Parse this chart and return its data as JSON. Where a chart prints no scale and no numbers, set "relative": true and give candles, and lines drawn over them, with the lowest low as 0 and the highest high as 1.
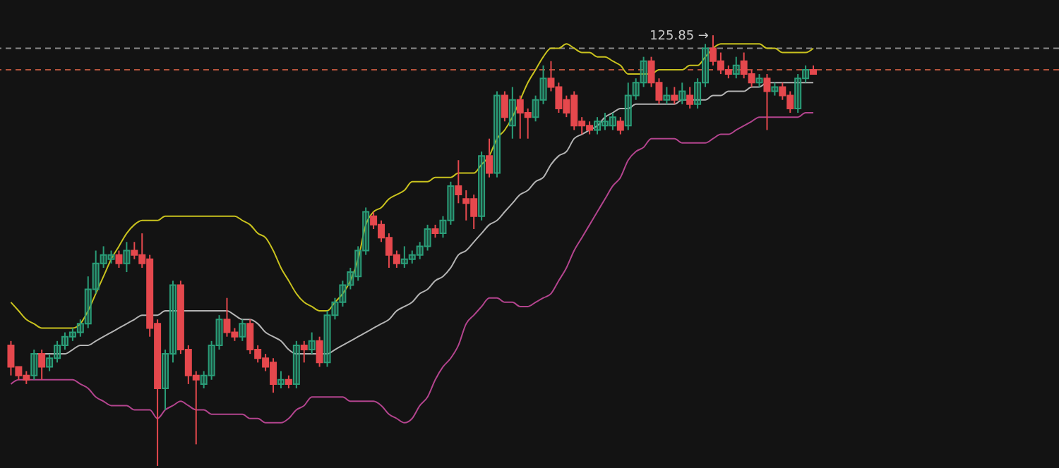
{
  "chart_data": {
    "type": "candlestick",
    "relative": true,
    "categories": [
      null,
      null,
      null,
      null,
      null,
      null,
      null,
      null,
      null,
      null,
      null,
      null,
      null,
      null,
      null,
      null,
      null,
      null,
      null,
      null,
      null,
      null,
      null,
      null,
      null,
      null,
      null,
      null,
      null,
      null,
      null,
      null,
      null,
      null,
      null,
      null,
      null,
      null,
      null,
      null,
      null,
      null,
      null,
      null,
      null,
      null,
      null,
      null,
      null,
      null,
      null,
      null,
      null,
      null,
      null,
      null,
      null,
      null,
      null,
      null,
      null,
      null,
      null,
      null,
      null,
      null,
      null,
      null,
      null,
      null,
      null,
      null,
      null,
      null,
      null,
      null,
      null,
      null,
      null,
      null,
      null,
      null,
      null,
      null,
      null,
      null,
      null,
      null,
      null,
      null,
      null,
      null,
      null,
      null,
      null,
      null,
      null,
      null,
      null,
      null,
      null,
      null,
      null,
      null,
      null
    ],
    "ohlc": [
      [
        0.28,
        0.29,
        0.21,
        0.23
      ],
      [
        0.23,
        0.23,
        0.2,
        0.21
      ],
      [
        0.21,
        0.22,
        0.19,
        0.2
      ],
      [
        0.21,
        0.27,
        0.2,
        0.26
      ],
      [
        0.26,
        0.27,
        0.2,
        0.23
      ],
      [
        0.23,
        0.26,
        0.22,
        0.25
      ],
      [
        0.25,
        0.29,
        0.24,
        0.28
      ],
      [
        0.28,
        0.31,
        0.27,
        0.3
      ],
      [
        0.3,
        0.32,
        0.29,
        0.31
      ],
      [
        0.31,
        0.34,
        0.3,
        0.33
      ],
      [
        0.33,
        0.44,
        0.32,
        0.41
      ],
      [
        0.41,
        0.5,
        0.4,
        0.47
      ],
      [
        0.47,
        0.51,
        0.46,
        0.49
      ],
      [
        0.48,
        0.5,
        0.47,
        0.49
      ],
      [
        0.49,
        0.5,
        0.46,
        0.47
      ],
      [
        0.47,
        0.52,
        0.45,
        0.5
      ],
      [
        0.5,
        0.52,
        0.48,
        0.49
      ],
      [
        0.49,
        0.54,
        0.46,
        0.47
      ],
      [
        0.48,
        0.49,
        0.3,
        0.32
      ],
      [
        0.33,
        0.34,
        0,
        0.18
      ],
      [
        0.18,
        0.27,
        0.13,
        0.26
      ],
      [
        0.26,
        0.43,
        0.24,
        0.42
      ],
      [
        0.42,
        0.43,
        0.26,
        0.27
      ],
      [
        0.27,
        0.28,
        0.19,
        0.21
      ],
      [
        0.21,
        0.22,
        0.05,
        0.2
      ],
      [
        0.19,
        0.22,
        0.18,
        0.21
      ],
      [
        0.21,
        0.29,
        0.2,
        0.28
      ],
      [
        0.28,
        0.35,
        0.27,
        0.34
      ],
      [
        0.34,
        0.39,
        0.3,
        0.31
      ],
      [
        0.31,
        0.32,
        0.29,
        0.3
      ],
      [
        0.3,
        0.34,
        0.29,
        0.33
      ],
      [
        0.33,
        0.34,
        0.26,
        0.27
      ],
      [
        0.27,
        0.28,
        0.24,
        0.25
      ],
      [
        0.25,
        0.26,
        0.22,
        0.23
      ],
      [
        0.24,
        0.25,
        0.17,
        0.19
      ],
      [
        0.19,
        0.22,
        0.18,
        0.2
      ],
      [
        0.2,
        0.21,
        0.18,
        0.19
      ],
      [
        0.19,
        0.29,
        0.18,
        0.28
      ],
      [
        0.28,
        0.29,
        0.24,
        0.27
      ],
      [
        0.27,
        0.31,
        0.26,
        0.29
      ],
      [
        0.29,
        0.3,
        0.23,
        0.24
      ],
      [
        0.24,
        0.36,
        0.23,
        0.35
      ],
      [
        0.35,
        0.39,
        0.34,
        0.38
      ],
      [
        0.38,
        0.43,
        0.37,
        0.42
      ],
      [
        0.42,
        0.46,
        0.41,
        0.45
      ],
      [
        0.44,
        0.51,
        0.43,
        0.5
      ],
      [
        0.5,
        0.6,
        0.49,
        0.59
      ],
      [
        0.58,
        0.59,
        0.55,
        0.56
      ],
      [
        0.56,
        0.57,
        0.52,
        0.53
      ],
      [
        0.53,
        0.54,
        0.46,
        0.49
      ],
      [
        0.49,
        0.5,
        0.46,
        0.47
      ],
      [
        0.47,
        0.51,
        0.46,
        0.48
      ],
      [
        0.48,
        0.5,
        0.47,
        0.49
      ],
      [
        0.49,
        0.52,
        0.48,
        0.51
      ],
      [
        0.51,
        0.56,
        0.5,
        0.55
      ],
      [
        0.55,
        0.56,
        0.53,
        0.54
      ],
      [
        0.54,
        0.58,
        0.53,
        0.57
      ],
      [
        0.57,
        0.66,
        0.56,
        0.65
      ],
      [
        0.65,
        0.71,
        0.61,
        0.63
      ],
      [
        0.62,
        0.64,
        0.57,
        0.61
      ],
      [
        0.62,
        0.63,
        0.55,
        0.58
      ],
      [
        0.58,
        0.73,
        0.57,
        0.72
      ],
      [
        0.72,
        0.76,
        0.67,
        0.68
      ],
      [
        0.68,
        0.87,
        0.67,
        0.86
      ],
      [
        0.86,
        0.87,
        0.8,
        0.81
      ],
      [
        0.79,
        0.88,
        0.76,
        0.85
      ],
      [
        0.85,
        0.86,
        0.76,
        0.82
      ],
      [
        0.82,
        0.83,
        0.76,
        0.81
      ],
      [
        0.81,
        0.86,
        0.8,
        0.85
      ],
      [
        0.85,
        0.93,
        0.84,
        0.9
      ],
      [
        0.9,
        0.94,
        0.87,
        0.88
      ],
      [
        0.88,
        0.89,
        0.82,
        0.83
      ],
      [
        0.85,
        0.86,
        0.81,
        0.82
      ],
      [
        0.86,
        0.87,
        0.78,
        0.79
      ],
      [
        0.8,
        0.81,
        0.77,
        0.79
      ],
      [
        0.79,
        0.8,
        0.77,
        0.78
      ],
      [
        0.78,
        0.81,
        0.77,
        0.8
      ],
      [
        0.79,
        0.82,
        0.78,
        0.8
      ],
      [
        0.79,
        0.82,
        0.78,
        0.81
      ],
      [
        0.8,
        0.81,
        0.77,
        0.78
      ],
      [
        0.79,
        0.89,
        0.78,
        0.86
      ],
      [
        0.86,
        0.9,
        0.85,
        0.89
      ],
      [
        0.89,
        0.95,
        0.88,
        0.94
      ],
      [
        0.94,
        0.95,
        0.88,
        0.89
      ],
      [
        0.89,
        0.9,
        0.84,
        0.85
      ],
      [
        0.85,
        0.88,
        0.84,
        0.86
      ],
      [
        0.86,
        0.88,
        0.84,
        0.85
      ],
      [
        0.85,
        0.89,
        0.84,
        0.87
      ],
      [
        0.86,
        0.88,
        0.83,
        0.84
      ],
      [
        0.84,
        0.9,
        0.83,
        0.89
      ],
      [
        0.89,
        0.98,
        0.88,
        0.97
      ],
      [
        0.97,
        1,
        0.93,
        0.94
      ],
      [
        0.94,
        0.96,
        0.91,
        0.92
      ],
      [
        0.92,
        0.93,
        0.9,
        0.91
      ],
      [
        0.91,
        0.95,
        0.9,
        0.93
      ],
      [
        0.94,
        0.96,
        0.9,
        0.91
      ],
      [
        0.91,
        0.92,
        0.88,
        0.89
      ],
      [
        0.89,
        0.91,
        0.88,
        0.9
      ],
      [
        0.9,
        0.91,
        0.78,
        0.87
      ],
      [
        0.87,
        0.89,
        0.86,
        0.88
      ],
      [
        0.88,
        0.89,
        0.85,
        0.86
      ],
      [
        0.86,
        0.87,
        0.82,
        0.83
      ],
      [
        0.83,
        0.91,
        0.82,
        0.9
      ],
      [
        0.9,
        0.93,
        0.89,
        0.92
      ],
      [
        0.92,
        0.93,
        0.91,
        0.91
      ]
    ],
    "series": [
      {
        "type": "line",
        "color": "#c9c21e",
        "values": [
          0.38,
          0.36,
          0.34,
          0.33,
          0.32,
          0.32,
          0.32,
          0.32,
          0.32,
          0.33,
          0.36,
          0.4,
          0.44,
          0.48,
          0.51,
          0.54,
          0.56,
          0.57,
          0.57,
          0.57,
          0.58,
          0.58,
          0.58,
          0.58,
          0.58,
          0.58,
          0.58,
          0.58,
          0.58,
          0.58,
          0.57,
          0.56,
          0.54,
          0.53,
          0.5,
          0.46,
          0.43,
          0.4,
          0.38,
          0.37,
          0.36,
          0.36,
          0.38,
          0.4,
          0.43,
          0.48,
          0.56,
          0.59,
          0.6,
          0.62,
          0.63,
          0.64,
          0.66,
          0.66,
          0.66,
          0.67,
          0.67,
          0.67,
          0.68,
          0.68,
          0.68,
          0.7,
          0.72,
          0.76,
          0.78,
          0.81,
          0.85,
          0.89,
          0.92,
          0.95,
          0.97,
          0.97,
          0.98,
          0.97,
          0.96,
          0.96,
          0.95,
          0.95,
          0.94,
          0.93,
          0.91,
          0.91,
          0.91,
          0.91,
          0.92,
          0.92,
          0.92,
          0.92,
          0.93,
          0.93,
          0.95,
          0.97,
          0.98,
          0.98,
          0.98,
          0.98,
          0.98,
          0.98,
          0.97,
          0.97,
          0.96,
          0.96,
          0.96,
          0.96,
          0.97
        ]
      },
      {
        "type": "line",
        "color": "#b4b4b4",
        "values": [
          null,
          null,
          null,
          0.26,
          0.26,
          0.26,
          0.26,
          0.26,
          0.27,
          0.28,
          0.28,
          0.29,
          0.3,
          0.31,
          0.32,
          0.33,
          0.34,
          0.35,
          0.35,
          0.35,
          0.36,
          0.36,
          0.36,
          0.36,
          0.36,
          0.36,
          0.36,
          0.36,
          0.36,
          0.35,
          0.34,
          0.34,
          0.33,
          0.31,
          0.3,
          0.29,
          0.27,
          0.26,
          0.26,
          0.26,
          0.26,
          0.26,
          0.27,
          0.28,
          0.29,
          0.3,
          0.31,
          0.32,
          0.33,
          0.34,
          0.36,
          0.37,
          0.38,
          0.4,
          0.41,
          0.43,
          0.44,
          0.46,
          0.49,
          0.5,
          0.52,
          0.54,
          0.56,
          0.57,
          0.59,
          0.61,
          0.63,
          0.64,
          0.66,
          0.67,
          0.7,
          0.72,
          0.73,
          0.76,
          0.77,
          0.78,
          0.79,
          0.81,
          0.82,
          0.83,
          0.83,
          0.84,
          0.84,
          0.84,
          0.84,
          0.84,
          0.84,
          0.85,
          0.85,
          0.85,
          0.85,
          0.86,
          0.86,
          0.87,
          0.87,
          0.87,
          0.88,
          0.88,
          0.89,
          0.89,
          0.89,
          0.89,
          0.89,
          0.89,
          0.89
        ]
      },
      {
        "type": "line",
        "color": "#b3448e",
        "values": [
          0.19,
          0.2,
          0.2,
          0.2,
          0.2,
          0.2,
          0.2,
          0.2,
          0.2,
          0.19,
          0.18,
          0.16,
          0.15,
          0.14,
          0.14,
          0.14,
          0.13,
          0.13,
          0.13,
          0.11,
          0.13,
          0.14,
          0.15,
          0.14,
          0.13,
          0.13,
          0.12,
          0.12,
          0.12,
          0.12,
          0.12,
          0.11,
          0.11,
          0.1,
          0.1,
          0.1,
          0.11,
          0.13,
          0.14,
          0.16,
          0.16,
          0.16,
          0.16,
          0.16,
          0.15,
          0.15,
          0.15,
          0.15,
          0.14,
          0.12,
          0.11,
          0.1,
          0.11,
          0.14,
          0.16,
          0.2,
          0.23,
          0.25,
          0.28,
          0.33,
          0.35,
          0.37,
          0.39,
          0.39,
          0.38,
          0.38,
          0.37,
          0.37,
          0.38,
          0.39,
          0.4,
          0.43,
          0.46,
          0.5,
          0.53,
          0.56,
          0.59,
          0.62,
          0.65,
          0.67,
          0.71,
          0.73,
          0.74,
          0.76,
          0.76,
          0.76,
          0.76,
          0.75,
          0.75,
          0.75,
          0.75,
          0.76,
          0.77,
          0.77,
          0.78,
          0.79,
          0.8,
          0.81,
          0.81,
          0.81,
          0.81,
          0.81,
          0.81,
          0.82,
          0.82
        ]
      }
    ],
    "ref_lines": [
      {
        "axis": "y",
        "value": 0.97,
        "color": "#8a8a8a",
        "line_style": "dashed"
      },
      {
        "axis": "y",
        "value": 0.92,
        "color": "#b5533c",
        "line_style": "dashed"
      }
    ],
    "annotations": [
      "125.85 →"
    ]
  }
}
